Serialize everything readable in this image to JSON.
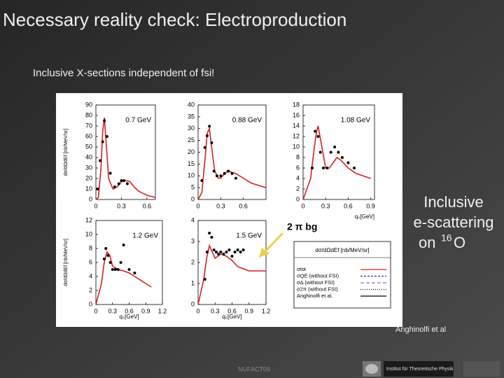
{
  "title": "Necessary reality check: Electroproduction",
  "subtitle": "Inclusive X-sections independent of fsi!",
  "figure": {
    "panels": [
      {
        "label": "0.7 GeV",
        "ylabel": "dσ/dΩdEf [nb/MeV/sr]",
        "xlim": [
          0,
          0.7
        ],
        "xticks": [
          0,
          0.3,
          0.6
        ],
        "ylim": [
          0,
          90
        ],
        "yticks": [
          0,
          10,
          20,
          30,
          40,
          50,
          60,
          70,
          80,
          90
        ],
        "model": {
          "color": "#d62020",
          "x": [
            0,
            0.03,
            0.06,
            0.08,
            0.1,
            0.12,
            0.15,
            0.2,
            0.25,
            0.3,
            0.35,
            0.4,
            0.45,
            0.5,
            0.6,
            0.7
          ],
          "values": [
            0,
            2,
            30,
            65,
            78,
            55,
            20,
            10,
            12,
            17,
            18,
            17,
            12,
            8,
            4,
            2
          ]
        },
        "data": {
          "color": "#000000",
          "x": [
            0.02,
            0.05,
            0.08,
            0.1,
            0.13,
            0.17,
            0.22,
            0.27,
            0.3,
            0.33,
            0.37
          ],
          "values": [
            10,
            37,
            55,
            75,
            60,
            25,
            12,
            15,
            18,
            18,
            15
          ]
        }
      },
      {
        "label": "0.88 GeV",
        "xlim": [
          0,
          0.9
        ],
        "xticks": [
          0,
          0.3,
          0.6
        ],
        "ylim": [
          0,
          40
        ],
        "yticks": [
          0,
          5,
          10,
          15,
          20,
          25,
          30,
          35,
          40
        ],
        "model": {
          "color": "#d62020",
          "x": [
            0,
            0.05,
            0.1,
            0.12,
            0.15,
            0.18,
            0.22,
            0.27,
            0.3,
            0.35,
            0.4,
            0.5,
            0.6,
            0.7,
            0.8,
            0.9
          ],
          "values": [
            0,
            3,
            20,
            28,
            30,
            22,
            12,
            9,
            9,
            11,
            12,
            11,
            9,
            7,
            6,
            5
          ]
        },
        "data": {
          "color": "#000000",
          "x": [
            0.05,
            0.09,
            0.12,
            0.15,
            0.18,
            0.21,
            0.25,
            0.3,
            0.35,
            0.4,
            0.45,
            0.5
          ],
          "values": [
            8,
            22,
            27,
            31,
            24,
            12,
            10,
            10,
            11,
            12,
            11,
            9
          ]
        }
      },
      {
        "label": "1.08 GeV",
        "xlabel": "q₀[GeV]",
        "xlim": [
          0,
          0.95
        ],
        "xticks": [
          0,
          0.3,
          0.6,
          0.9
        ],
        "ylim": [
          0,
          18
        ],
        "yticks": [
          0,
          2,
          4,
          6,
          8,
          10,
          12,
          14,
          16,
          18
        ],
        "model": {
          "color": "#d62020",
          "x": [
            0,
            0.1,
            0.15,
            0.18,
            0.2,
            0.25,
            0.3,
            0.35,
            0.4,
            0.45,
            0.5,
            0.6,
            0.7,
            0.8,
            0.9
          ],
          "values": [
            0,
            4,
            10,
            13,
            14,
            10,
            6,
            6,
            7,
            8,
            7.5,
            6,
            5,
            4.5,
            4
          ]
        },
        "data": {
          "color": "#000000",
          "x": [
            0.12,
            0.16,
            0.2,
            0.23,
            0.27,
            0.32,
            0.37,
            0.42,
            0.47,
            0.52,
            0.6,
            0.68
          ],
          "values": [
            6,
            13,
            12,
            9,
            6,
            6,
            9,
            10,
            9,
            8,
            7,
            6
          ]
        }
      },
      {
        "label": "1.2 GeV",
        "ylabel": "dσ/dΩdEf [nb/MeV/sr]",
        "xlabel": "q₀[GeV]",
        "xlim": [
          0,
          1.2
        ],
        "xticks": [
          0,
          0.3,
          0.6,
          0.9,
          1.2
        ],
        "ylim": [
          0,
          12
        ],
        "yticks": [
          0,
          2,
          4,
          6,
          8,
          10,
          12
        ],
        "model": {
          "color": "#d62020",
          "x": [
            0,
            0.1,
            0.15,
            0.2,
            0.25,
            0.3,
            0.4,
            0.5,
            0.6,
            0.7,
            0.8,
            0.9,
            1.0
          ],
          "values": [
            0,
            3,
            6,
            7.5,
            7,
            5.5,
            5,
            4.8,
            4.5,
            4,
            3.5,
            3,
            2.5
          ]
        },
        "data": {
          "color": "#000000",
          "x": [
            0.15,
            0.18,
            0.22,
            0.26,
            0.3,
            0.35,
            0.4,
            0.45,
            0.5,
            0.6,
            0.7
          ],
          "values": [
            6.5,
            8,
            7,
            6,
            5,
            5,
            5,
            6,
            8.5,
            5,
            4.5
          ]
        }
      },
      {
        "label": "1.5 GeV",
        "xlabel": "q₀[GeV]",
        "xlim": [
          0,
          1.2
        ],
        "xticks": [
          0,
          0.3,
          0.6,
          0.9,
          1.2
        ],
        "ylim": [
          0,
          4
        ],
        "yticks": [
          0,
          1,
          2,
          3,
          4
        ],
        "model": {
          "color": "#d62020",
          "x": [
            0,
            0.1,
            0.15,
            0.2,
            0.25,
            0.3,
            0.35,
            0.4,
            0.5,
            0.6,
            0.7,
            0.8,
            0.9,
            1.0,
            1.2
          ],
          "values": [
            0,
            1.2,
            2.2,
            2.8,
            2.5,
            2.2,
            2.3,
            2.4,
            2.3,
            2.1,
            1.8,
            1.7,
            1.6,
            1.6,
            1.6
          ]
        },
        "data": {
          "color": "#000000",
          "x": [
            0.12,
            0.16,
            0.2,
            0.24,
            0.28,
            0.32,
            0.36,
            0.4,
            0.45,
            0.5,
            0.55,
            0.6,
            0.65,
            0.7,
            0.75,
            0.8
          ],
          "values": [
            1.2,
            2.5,
            3.4,
            3.2,
            2.6,
            2.5,
            2.4,
            2.5,
            2.4,
            2.5,
            2.6,
            2.3,
            2.5,
            2.6,
            2.5,
            2.6
          ]
        }
      }
    ],
    "legend": {
      "header": "dσ/dΩdEf [nb/MeV/sr]",
      "entries": [
        {
          "label": "σtot",
          "color": "#d62020",
          "dash": "none"
        },
        {
          "label": "σQE (without FSI)",
          "color": "#2030b0",
          "dash": "3,2"
        },
        {
          "label": "σΔ (without FSI)",
          "color": "#9a60d0",
          "dash": "5,3"
        },
        {
          "label": "σ2π (without FSI)",
          "color": "#000000",
          "dash": "1,2"
        },
        {
          "label": "Anghinolfi et al.",
          "color": "#000000",
          "dash": "none"
        }
      ]
    },
    "annotation": "2 π bg",
    "credit": "Anghinolfi et al"
  },
  "side_note": {
    "lines": [
      "Inclusive",
      "e-scattering"
    ],
    "prefix": "on",
    "superscript": "16",
    "suffix": "O"
  },
  "footer": "NUFACT09",
  "logo_text": "Institut für Theoretische Physik"
}
